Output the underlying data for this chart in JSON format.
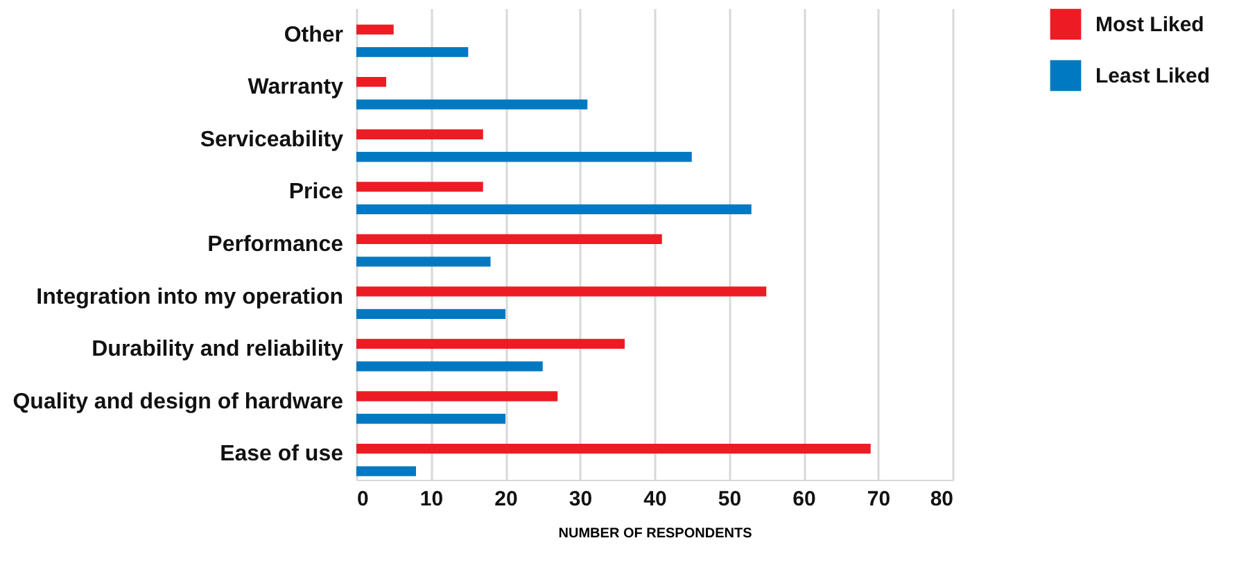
{
  "chart_data": {
    "type": "bar",
    "orientation": "horizontal",
    "xlabel": "NUMBER OF RESPONDENTS",
    "categories": [
      "Other",
      "Warranty",
      "Serviceability",
      "Price",
      "Performance",
      "Integration into my operation",
      "Durability and reliability",
      "Quality and design of hardware",
      "Ease of use"
    ],
    "series": [
      {
        "name": "Most Liked",
        "color": "#ed1c24",
        "values": [
          5,
          4,
          17,
          17,
          41,
          55,
          36,
          27,
          69
        ]
      },
      {
        "name": "Least Liked",
        "color": "#0079c2",
        "values": [
          15,
          31,
          45,
          53,
          18,
          20,
          25,
          20,
          8
        ]
      }
    ],
    "xlim": [
      0,
      80
    ],
    "xticks": [
      0,
      10,
      20,
      30,
      40,
      50,
      60,
      70,
      80
    ],
    "grid": "x",
    "legend": "top right"
  }
}
